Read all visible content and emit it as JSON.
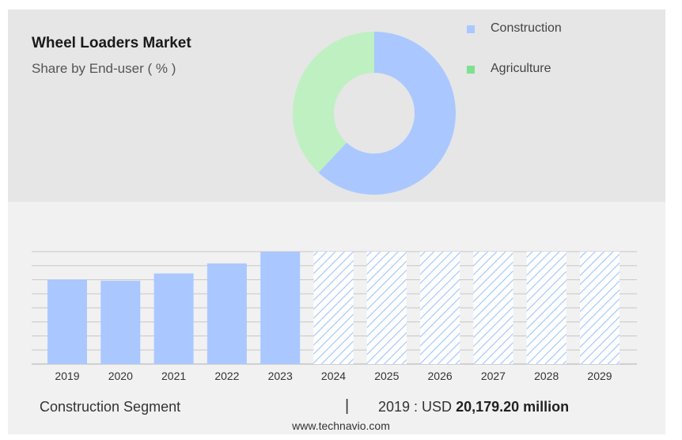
{
  "header": {
    "title": "Wheel Loaders Market",
    "subtitle": "Share by End-user ( % )"
  },
  "legend": [
    {
      "label": "Construction",
      "color": "#aac8ff"
    },
    {
      "label": "Agriculture",
      "color": "#7fe08f"
    }
  ],
  "footer": {
    "segment": "Construction Segment",
    "divider": "|",
    "year_prefix": "2019 : USD ",
    "value": "20,179.20 million",
    "source": "www.technavio.com"
  },
  "chart_data": [
    {
      "type": "pie",
      "donut": true,
      "title": "",
      "labels": [
        "Construction",
        "Agriculture"
      ],
      "values": [
        62,
        38
      ],
      "colors": [
        "#aac8ff",
        "#bff0c2"
      ]
    },
    {
      "type": "bar",
      "title": "",
      "categories": [
        "2019",
        "2020",
        "2021",
        "2022",
        "2023",
        "2024",
        "2025",
        "2026",
        "2027",
        "2028",
        "2029"
      ],
      "values": [
        20179.2,
        19870,
        21600,
        24000,
        26800,
        null,
        null,
        null,
        null,
        null,
        null
      ],
      "forecast_categories": [
        "2024",
        "2025",
        "2026",
        "2027",
        "2028",
        "2029"
      ],
      "ylim": [
        0,
        26800
      ],
      "grid": true,
      "colors": {
        "actual": "#aac8ff",
        "forecast": "#9ec3ff"
      }
    }
  ]
}
